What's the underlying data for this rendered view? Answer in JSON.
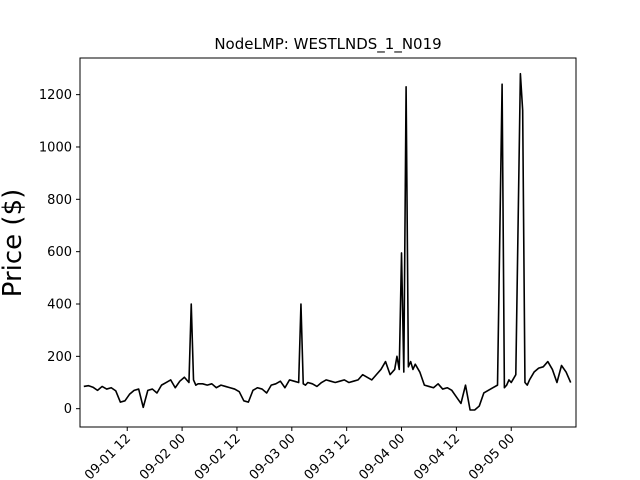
{
  "chart_data": {
    "type": "line",
    "title": "NodeLMP: WESTLNDS_1_N019",
    "xlabel": "",
    "ylabel": "Price ($)",
    "ylim": [
      -70,
      1340
    ],
    "grid": false,
    "legend": "none",
    "line_color": "#000000",
    "x_tick_labels": [
      "09-01 12",
      "09-02 00",
      "09-02 12",
      "09-03 00",
      "09-03 12",
      "09-04 00",
      "09-04 12",
      "09-05 00"
    ],
    "x_tick_values": [
      "2024-09-01 12:00",
      "2024-09-02 00:00",
      "2024-09-02 12:00",
      "2024-09-03 00:00",
      "2024-09-03 12:00",
      "2024-09-04 00:00",
      "2024-09-04 12:00",
      "2024-09-05 00:00"
    ],
    "y_ticks": [
      0,
      200,
      400,
      600,
      800,
      1000,
      1200
    ],
    "xlim": [
      "2024-09-01 01:40",
      "2024-09-05 14:10"
    ],
    "series": [
      {
        "x": [
          "2024-09-01 02:30",
          "2024-09-01 03:30",
          "2024-09-01 04:30",
          "2024-09-01 05:30",
          "2024-09-01 06:30",
          "2024-09-01 07:30",
          "2024-09-01 08:30",
          "2024-09-01 09:30",
          "2024-09-01 10:30",
          "2024-09-01 11:30",
          "2024-09-01 12:30",
          "2024-09-01 13:30",
          "2024-09-01 14:30",
          "2024-09-01 15:30",
          "2024-09-01 16:30",
          "2024-09-01 17:30",
          "2024-09-01 18:30",
          "2024-09-01 19:30",
          "2024-09-01 20:30",
          "2024-09-01 21:30",
          "2024-09-01 22:30",
          "2024-09-01 23:30",
          "2024-09-02 00:30",
          "2024-09-02 01:30",
          "2024-09-02 02:00",
          "2024-09-02 02:30",
          "2024-09-02 03:00",
          "2024-09-02 03:30",
          "2024-09-02 04:30",
          "2024-09-02 05:30",
          "2024-09-02 06:30",
          "2024-09-02 07:30",
          "2024-09-02 08:30",
          "2024-09-02 09:30",
          "2024-09-02 10:30",
          "2024-09-02 11:30",
          "2024-09-02 12:30",
          "2024-09-02 13:30",
          "2024-09-02 14:30",
          "2024-09-02 15:30",
          "2024-09-02 16:30",
          "2024-09-02 17:30",
          "2024-09-02 18:30",
          "2024-09-02 19:30",
          "2024-09-02 20:30",
          "2024-09-02 21:30",
          "2024-09-02 22:30",
          "2024-09-02 23:30",
          "2024-09-03 00:30",
          "2024-09-03 01:30",
          "2024-09-03 02:00",
          "2024-09-03 02:30",
          "2024-09-03 03:00",
          "2024-09-03 03:30",
          "2024-09-03 04:30",
          "2024-09-03 05:30",
          "2024-09-03 06:30",
          "2024-09-03 07:30",
          "2024-09-03 08:30",
          "2024-09-03 09:30",
          "2024-09-03 10:30",
          "2024-09-03 11:30",
          "2024-09-03 12:30",
          "2024-09-03 13:30",
          "2024-09-03 14:30",
          "2024-09-03 15:30",
          "2024-09-03 16:30",
          "2024-09-03 17:30",
          "2024-09-03 18:30",
          "2024-09-03 19:30",
          "2024-09-03 20:30",
          "2024-09-03 21:30",
          "2024-09-03 22:30",
          "2024-09-03 23:00",
          "2024-09-03 23:30",
          "2024-09-04 00:00",
          "2024-09-04 00:30",
          "2024-09-04 01:00",
          "2024-09-04 01:30",
          "2024-09-04 02:00",
          "2024-09-04 02:30",
          "2024-09-04 03:00",
          "2024-09-04 04:00",
          "2024-09-04 05:00",
          "2024-09-04 06:00",
          "2024-09-04 07:00",
          "2024-09-04 08:00",
          "2024-09-04 09:00",
          "2024-09-04 10:00",
          "2024-09-04 11:00",
          "2024-09-04 12:00",
          "2024-09-04 13:00",
          "2024-09-04 14:00",
          "2024-09-04 15:00",
          "2024-09-04 16:00",
          "2024-09-04 17:00",
          "2024-09-04 18:00",
          "2024-09-04 19:00",
          "2024-09-04 20:00",
          "2024-09-04 21:00",
          "2024-09-04 22:00",
          "2024-09-04 22:30",
          "2024-09-04 23:00",
          "2024-09-04 23:30",
          "2024-09-05 00:00",
          "2024-09-05 01:00",
          "2024-09-05 02:00",
          "2024-09-05 02:30",
          "2024-09-05 03:00",
          "2024-09-05 03:30",
          "2024-09-05 04:00",
          "2024-09-05 05:00",
          "2024-09-05 06:00",
          "2024-09-05 07:00",
          "2024-09-05 08:00",
          "2024-09-05 09:00",
          "2024-09-05 10:00",
          "2024-09-05 11:00",
          "2024-09-05 12:00",
          "2024-09-05 13:00"
        ],
        "y": [
          85,
          88,
          82,
          70,
          85,
          75,
          80,
          68,
          25,
          30,
          55,
          70,
          75,
          5,
          70,
          75,
          60,
          90,
          100,
          110,
          80,
          105,
          120,
          100,
          400,
          110,
          90,
          95,
          95,
          90,
          95,
          80,
          90,
          85,
          80,
          75,
          65,
          30,
          25,
          70,
          80,
          75,
          60,
          90,
          95,
          105,
          80,
          110,
          105,
          100,
          400,
          95,
          90,
          100,
          95,
          85,
          100,
          110,
          105,
          100,
          105,
          110,
          100,
          105,
          110,
          130,
          120,
          110,
          130,
          150,
          180,
          130,
          150,
          200,
          150,
          595,
          140,
          1230,
          160,
          180,
          150,
          170,
          140,
          90,
          85,
          80,
          95,
          75,
          80,
          70,
          45,
          20,
          90,
          -5,
          -5,
          10,
          60,
          70,
          80,
          90,
          1240,
          80,
          90,
          110,
          100,
          130,
          1280,
          1140,
          100,
          90,
          110,
          140,
          155,
          160,
          180,
          150,
          100,
          165,
          140,
          100
        ]
      }
    ]
  }
}
